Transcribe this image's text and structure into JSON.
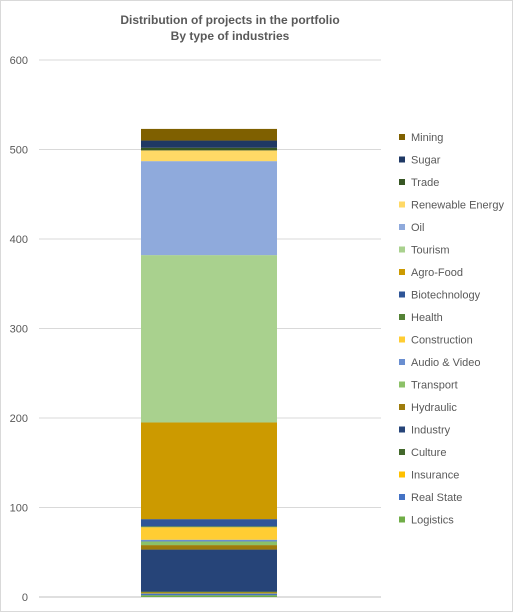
{
  "chart_data": {
    "type": "bar",
    "stacked": true,
    "title": "Distribution of projects in the portfolio",
    "subtitle": "By type of industries",
    "xlabel": "",
    "ylabel": "",
    "ylim": [
      0,
      600
    ],
    "yticks": [
      0,
      100,
      200,
      300,
      400,
      500,
      600
    ],
    "grid": true,
    "legend_position": "right",
    "categories": [
      ""
    ],
    "series": [
      {
        "name": "Logistics",
        "values": [
          2
        ],
        "color": "#70AD47"
      },
      {
        "name": "Real State",
        "values": [
          2
        ],
        "color": "#4472C4"
      },
      {
        "name": "Insurance",
        "values": [
          1
        ],
        "color": "#FFC000"
      },
      {
        "name": "Culture",
        "values": [
          1
        ],
        "color": "#43682B"
      },
      {
        "name": "Industry",
        "values": [
          47
        ],
        "color": "#264478"
      },
      {
        "name": "Hydraulic",
        "values": [
          5
        ],
        "color": "#9E7C0C"
      },
      {
        "name": "Transport",
        "values": [
          4
        ],
        "color": "#8CC168"
      },
      {
        "name": "Audio & Video",
        "values": [
          2
        ],
        "color": "#698ED0"
      },
      {
        "name": "Construction",
        "values": [
          14
        ],
        "color": "#FFCD33"
      },
      {
        "name": "Health",
        "values": [
          1
        ],
        "color": "#548235"
      },
      {
        "name": "Biotechnology",
        "values": [
          8
        ],
        "color": "#2F5597"
      },
      {
        "name": "Agro-Food",
        "values": [
          108
        ],
        "color": "#CC9A00"
      },
      {
        "name": "Tourism",
        "values": [
          187
        ],
        "color": "#A9D18E"
      },
      {
        "name": "Oil",
        "values": [
          105
        ],
        "color": "#8FAADC"
      },
      {
        "name": "Renewable Energy",
        "values": [
          12
        ],
        "color": "#FFD966"
      },
      {
        "name": "Trade",
        "values": [
          3
        ],
        "color": "#375623"
      },
      {
        "name": "Sugar",
        "values": [
          8
        ],
        "color": "#1F3864"
      },
      {
        "name": "Mining",
        "values": [
          13
        ],
        "color": "#7F6000"
      }
    ]
  }
}
